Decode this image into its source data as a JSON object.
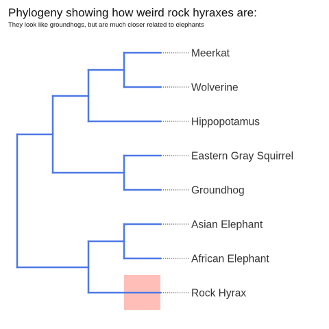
{
  "title": "Phylogeny showing how weird rock hyraxes are:",
  "subtitle": "They look like groundhogs, but are much closer related to elephants",
  "colors": {
    "branch": "#4d79e6",
    "highlight": "#ffbfb8",
    "label": "#333333",
    "leader": "#333333"
  },
  "tree": {
    "leaves": [
      "Meerkat",
      "Wolverine",
      "Hippopotamus",
      "Eastern Gray Squirrel",
      "Groundhog",
      "Asian Elephant",
      "African Elephant",
      "Rock Hyrax"
    ],
    "highlighted_leaf": "Rock Hyrax",
    "newick": "(((((Meerkat,Wolverine),Hippopotamus),(Eastern Gray Squirrel,Groundhog)),((Asian Elephant,African Elephant),Rock Hyrax)));"
  }
}
